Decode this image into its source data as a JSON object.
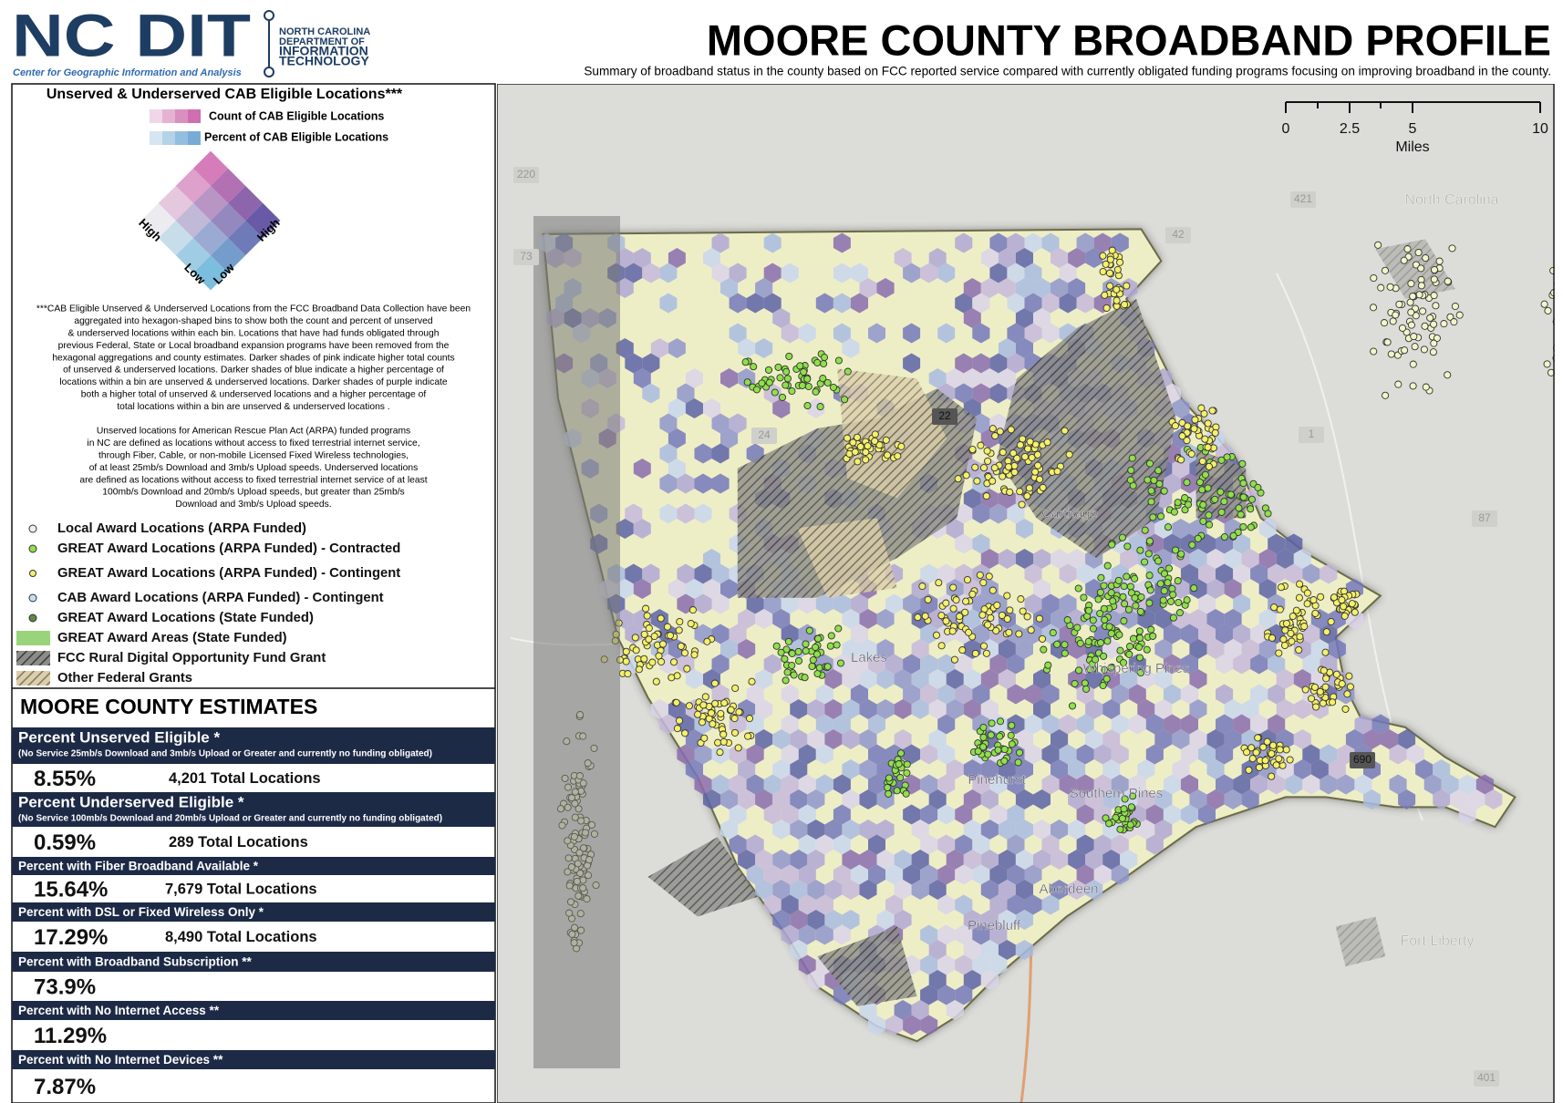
{
  "header": {
    "logo": "NC DIT",
    "logo_tagline": "Center for Geographic Information and Analysis",
    "department": [
      "NORTH CAROLINA",
      "DEPARTMENT OF",
      "INFORMATION",
      "TECHNOLOGY"
    ],
    "title": "MOORE COUNTY BROADBAND PROFILE",
    "subtitle": "Summary of broadband status in the county based on FCC reported service compared with currently obligated funding programs focusing on improving broadband in the county."
  },
  "legend": {
    "title": "Unserved & Underserved CAB Eligible Locations***",
    "swatches": [
      "Count of CAB Eligible Locations",
      "Percent of CAB Eligible Locations"
    ],
    "axis_labels": [
      "High",
      "Low",
      "Low",
      "High"
    ],
    "note": [
      [
        "***CAB Eligible Unserved & Underserved Locations from the FCC Broadband Data Collection  have been",
        "aggregated into hexagon-shaped bins to show both the count and percent of unserved",
        "& underserved locations within each bin. Locations that have had funds obligated through",
        "previous Federal, State or Local broadband expansion programs have been removed from the",
        "hexagonal aggregations and county estimates. Darker shades of pink indicate higher total counts",
        "of unserved & underserved locations.  Darker shades of blue indicate a higher percentage of",
        "locations within a bin are unserved & underserved locations. Darker shades of purple indicate",
        "both a higher total of unserved & underserved locations and a higher percentage of",
        "total locations within a bin are unserved & underserved locations ."
      ],
      [
        "Unserved locations for American Rescue Plan Act (ARPA) funded programs",
        "in NC are defined as locations without access to fixed terrestrial internet service,",
        "through Fiber, Cable, or non-mobile Licensed Fixed Wireless technologies,",
        "of at least 25mb/s Download and 3mb/s Upload speeds. Underserved locations",
        "are defined as locations without access to fixed terrestrial internet service of at least",
        "100mb/s Download and 20mb/s Upload speeds, but greater than 25mb/s",
        "Download and 3mb/s Upload speeds."
      ]
    ],
    "items": [
      "Local Award Locations (ARPA Funded)",
      "GREAT Award Locations (ARPA Funded) - Contracted",
      "GREAT Award Locations (ARPA Funded) - Contingent",
      "CAB Award Locations (ARPA Funded) - Contingent",
      "GREAT Award Locations (State Funded)",
      "GREAT Award Areas (State Funded)",
      "FCC Rural Digital Opportunity Fund Grant",
      "Other Federal Grants"
    ]
  },
  "estimates": {
    "title": "MOORE COUNTY ESTIMATES",
    "rows": [
      {
        "label": "Percent Unserved Eligible *",
        "note": "(No Service 25mb/s Download and 3mb/s Upload or Greater and currently no funding obligated)",
        "percent": "8.55%",
        "locations": "4,201 Total Locations"
      },
      {
        "label": "Percent Underserved Eligible *",
        "note": "(No Service 100mb/s Download and 20mb/s Upload or Greater and currently no funding obligated)",
        "percent": "0.59%",
        "locations": "289 Total Locations"
      },
      {
        "label": "Percent with Fiber Broadband Available *",
        "percent": "15.64%",
        "locations": "7,679 Total Locations"
      },
      {
        "label": "Percent with DSL or Fixed Wireless Only *",
        "percent": "17.29%",
        "locations": "8,490 Total Locations"
      },
      {
        "label": "Percent with Broadband Subscription **",
        "percent": "73.9%"
      },
      {
        "label": "Percent with No Internet Access **",
        "percent": "11.29%"
      },
      {
        "label": "Percent with No Internet Devices **",
        "percent": "7.87%"
      }
    ]
  },
  "map": {
    "scale_bar": {
      "ticks": [
        "0",
        "2.5",
        "5",
        "10"
      ],
      "unit": "Miles"
    },
    "places": [
      "Pinehurst",
      "Southern Pines",
      "Aberdeen",
      "Pinebluff",
      "Carthage",
      "Whispering Pines",
      "Lakes",
      "Fort Liberty",
      "North Carolina"
    ],
    "roads": [
      "220",
      "421",
      "42",
      "73",
      "24",
      "22",
      "87",
      "690",
      "1",
      "401"
    ]
  }
}
